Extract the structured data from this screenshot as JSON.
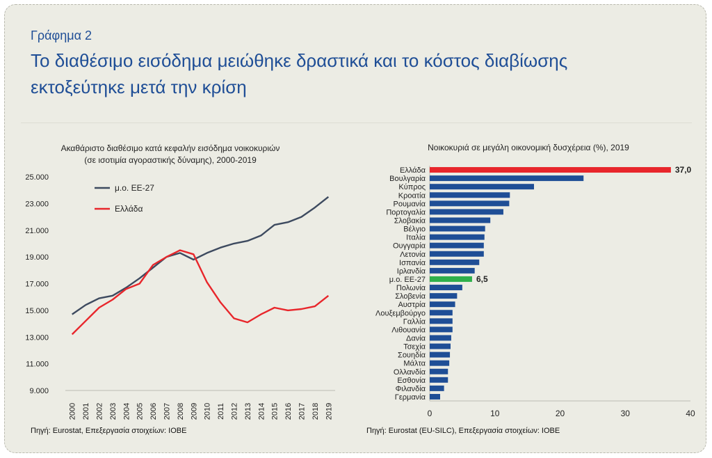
{
  "header": {
    "kicker": "Γράφημα 2",
    "headline_line1": "Το διαθέσιμο εισόδημα μειώθηκε δραστικά και το κόστος διαβίωσης",
    "headline_line2": "εκτοξεύτηκε μετά την κρίση"
  },
  "colors": {
    "eu": "#3d4a5f",
    "greece": "#e8262b",
    "bar": "#1f4e96",
    "bar_greece": "#e8262b",
    "bar_eu": "#2fb04b",
    "title": "#1f4e96"
  },
  "chart_data": [
    {
      "type": "line",
      "title_line1": "Ακαθάριστο διαθέσιμο κατά κεφαλήν εισόδημα νοικοκυριών",
      "title_line2": "(σε ισοτιμία αγοραστικής δύναμης), 2000-2019",
      "x": [
        "2000",
        "2001",
        "2002",
        "2003",
        "2004",
        "2005",
        "2006",
        "2007",
        "2008",
        "2009",
        "2010",
        "2011",
        "2012",
        "2013",
        "2014",
        "2015",
        "2016",
        "2017",
        "2018",
        "2019"
      ],
      "ylim": [
        9000,
        25000
      ],
      "yticks": [
        9000,
        11000,
        13000,
        15000,
        17000,
        19000,
        21000,
        23000,
        25000
      ],
      "ytick_labels": [
        "9.000",
        "11.000",
        "13.000",
        "15.000",
        "17.000",
        "19.000",
        "21.000",
        "23.000",
        "25.000"
      ],
      "series": [
        {
          "name": "μ.ο. ΕΕ-27",
          "values": [
            14700,
            15400,
            15900,
            16100,
            16700,
            17400,
            18200,
            19000,
            19300,
            18800,
            19300,
            19700,
            20000,
            20200,
            20600,
            21400,
            21600,
            22000,
            22700,
            23500
          ]
        },
        {
          "name": "Ελλάδα",
          "values": [
            13200,
            14200,
            15200,
            15800,
            16600,
            17000,
            18400,
            19000,
            19500,
            19200,
            17100,
            15600,
            14400,
            14100,
            14700,
            15200,
            15000,
            15100,
            15300,
            16100
          ]
        }
      ],
      "legend": "top-left",
      "source": "Πηγή: Eurostat, Επεξεργασία στοιχείων: ΙΟΒΕ"
    },
    {
      "type": "bar",
      "orientation": "horizontal",
      "title": "Νοικοκυριά σε μεγάλη οικονομική δυσχέρεια (%), 2019",
      "categories": [
        "Ελλάδα",
        "Βουλγαρία",
        "Κύπρος",
        "Κροατία",
        "Ρουμανία",
        "Πορτογαλία",
        "Σλοβακία",
        "Βέλγιο",
        "Ιταλία",
        "Ουγγαρία",
        "Λετονία",
        "Ισπανία",
        "Ιρλανδία",
        "μ.ο. ΕΕ-27",
        "Πολωνία",
        "Σλοβενία",
        "Αυστρία",
        "Λουξεμβούργο",
        "Γαλλία",
        "Λιθουανία",
        "Δανία",
        "Τσεχία",
        "Σουηδία",
        "Μάλτα",
        "Ολλανδία",
        "Εσθονία",
        "Φιλανδία",
        "Γερμανία"
      ],
      "values": [
        37.0,
        23.6,
        16.0,
        12.3,
        12.2,
        11.3,
        9.3,
        8.5,
        8.4,
        8.3,
        8.3,
        7.6,
        6.9,
        6.5,
        5.0,
        4.2,
        3.9,
        3.5,
        3.5,
        3.5,
        3.3,
        3.2,
        3.1,
        3.0,
        2.8,
        2.8,
        2.2,
        1.6
      ],
      "highlight": {
        "Ελλάδα": "greece",
        "μ.ο. ΕΕ-27": "eu"
      },
      "data_labels": {
        "Ελλάδα": "37,0",
        "μ.ο. ΕΕ-27": "6,5"
      },
      "xlim": [
        0,
        40
      ],
      "xticks": [
        0,
        10,
        20,
        30,
        40
      ],
      "source": "Πηγή: Eurostat (EU-SILC), Επεξεργασία στοιχείων: ΙΟΒΕ"
    }
  ]
}
